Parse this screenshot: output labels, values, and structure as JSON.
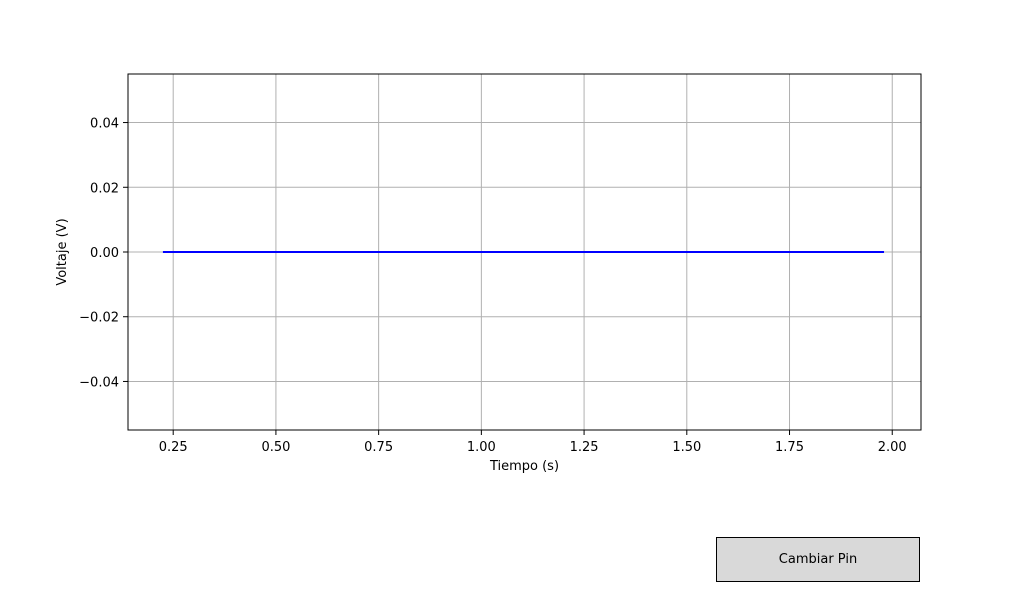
{
  "chart_data": {
    "type": "line",
    "title": "",
    "xlabel": "Tiempo (s)",
    "ylabel": "Voltaje (V)",
    "xlim": [
      0.14,
      2.07
    ],
    "ylim": [
      -0.055,
      0.055
    ],
    "xticks": [
      0.25,
      0.5,
      0.75,
      1.0,
      1.25,
      1.5,
      1.75,
      2.0
    ],
    "xtick_labels": [
      "0.25",
      "0.50",
      "0.75",
      "1.00",
      "1.25",
      "1.50",
      "1.75",
      "2.00"
    ],
    "yticks": [
      0.04,
      0.02,
      0.0,
      -0.02,
      -0.04
    ],
    "ytick_labels": [
      "0.04",
      "0.02",
      "0.00",
      "−0.02",
      "−0.04"
    ],
    "grid": true,
    "series": [
      {
        "x": [
          0.225,
          1.98
        ],
        "y": [
          0.0,
          0.0
        ],
        "color": "#0000ff"
      }
    ]
  },
  "controls": {
    "change_pin_label": "Cambiar Pin"
  }
}
